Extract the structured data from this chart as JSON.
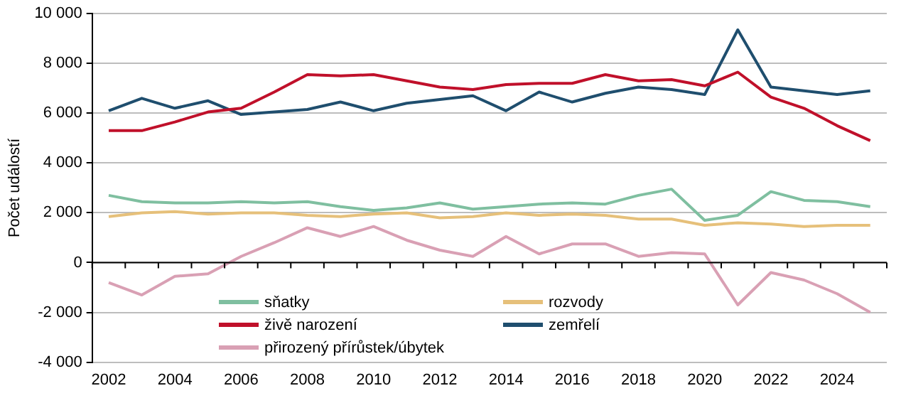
{
  "chart_data": {
    "type": "line",
    "ylabel": "Počet událostí",
    "categories": [
      "2002",
      null,
      "2004",
      null,
      "2006",
      null,
      "2008",
      null,
      "2010",
      null,
      "2012",
      null,
      "2014",
      null,
      "2016",
      null,
      "2018",
      null,
      "2020",
      null,
      "2022",
      null,
      "2024",
      null
    ],
    "ylim": [
      -4000,
      10000
    ],
    "yticks": [
      {
        "value": -4000,
        "label": "-4 000"
      },
      {
        "value": -2000,
        "label": "-2 000"
      },
      0,
      {
        "value": 2000,
        "label": "2 000"
      },
      {
        "value": 4000,
        "label": "4 000"
      },
      {
        "value": 6000,
        "label": "6 000"
      },
      {
        "value": 8000,
        "label": "8 000"
      },
      {
        "value": 10000,
        "label": "10 000"
      }
    ],
    "grid": "y",
    "legend": "bottom",
    "marker": "none",
    "line_style": "solid",
    "series": [
      {
        "name": "sňatky",
        "color": "#7fbfa0",
        "values": [
          2700,
          2450,
          2400,
          2400,
          2450,
          2400,
          2450,
          2250,
          2100,
          2200,
          2400,
          2150,
          2250,
          2350,
          2400,
          2350,
          2700,
          2950,
          1700,
          1900,
          2850,
          2500,
          2450,
          2250
        ]
      },
      {
        "name": "rozvody",
        "color": "#e6c07a",
        "values": [
          1850,
          2000,
          2050,
          1950,
          2000,
          2000,
          1900,
          1850,
          1950,
          2000,
          1800,
          1850,
          2000,
          1900,
          1950,
          1900,
          1750,
          1750,
          1500,
          1600,
          1550,
          1450,
          1500,
          1500
        ]
      },
      {
        "name": "živě narození",
        "color": "#c0102a",
        "values": [
          5300,
          5300,
          5650,
          6050,
          6200,
          6850,
          7550,
          7500,
          7550,
          7300,
          7050,
          6950,
          7150,
          7200,
          7200,
          7550,
          7300,
          7350,
          7100,
          7650,
          6650,
          6200,
          5500,
          4900
        ]
      },
      {
        "name": "zemřelí",
        "color": "#1f4e6e",
        "values": [
          6100,
          6600,
          6200,
          6500,
          5950,
          6050,
          6150,
          6450,
          6100,
          6400,
          6550,
          6700,
          6100,
          6850,
          6450,
          6800,
          7050,
          6950,
          6750,
          9350,
          7050,
          6900,
          6750,
          6900
        ]
      },
      {
        "name": "přirozený přírůstek/úbytek",
        "color": "#d9a0b4",
        "values": [
          -800,
          -1300,
          -550,
          -450,
          250,
          800,
          1400,
          1050,
          1450,
          900,
          500,
          250,
          1050,
          350,
          750,
          750,
          250,
          400,
          350,
          -1700,
          -400,
          -700,
          -1250,
          -2000
        ]
      }
    ]
  }
}
